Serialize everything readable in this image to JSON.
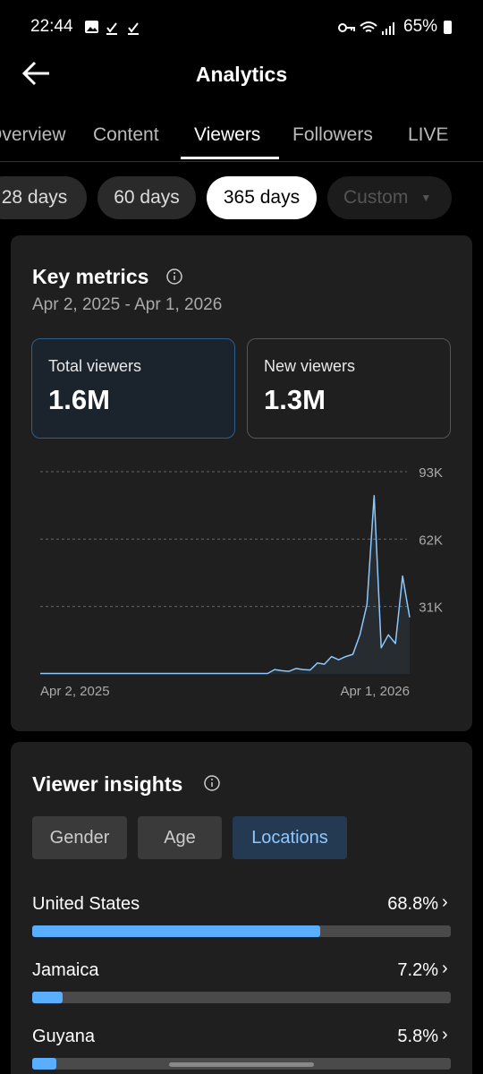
{
  "status_bar": {
    "time": "22:44",
    "battery": "65%"
  },
  "header": {
    "title": "Analytics"
  },
  "tabs": [
    "Overview",
    "Content",
    "Viewers",
    "Followers",
    "LIVE"
  ],
  "ranges": [
    "28 days",
    "60 days",
    "365 days",
    "Custom"
  ],
  "key_metrics": {
    "title": "Key metrics",
    "date_range": "Apr 2, 2025 - Apr 1, 2026",
    "cards": [
      {
        "label": "Total viewers",
        "value": "1.6M"
      },
      {
        "label": "New viewers",
        "value": "1.3M"
      }
    ]
  },
  "chart_data": {
    "type": "line",
    "categories": [
      "Apr 2, 2025",
      null,
      null,
      null,
      null,
      null,
      null,
      null,
      null,
      null,
      null,
      null,
      null,
      null,
      null,
      null,
      null,
      null,
      null,
      null,
      null,
      null,
      null,
      null,
      null,
      null,
      null,
      null,
      null,
      null,
      null,
      null,
      null,
      null,
      null,
      null,
      null,
      null,
      null,
      null,
      null,
      null,
      null,
      null,
      null,
      null,
      null,
      null,
      null,
      null,
      null,
      null,
      "Apr 1, 2026"
    ],
    "values": [
      200,
      200,
      200,
      200,
      200,
      200,
      200,
      200,
      200,
      200,
      200,
      200,
      200,
      200,
      200,
      200,
      200,
      200,
      200,
      200,
      200,
      200,
      200,
      200,
      200,
      200,
      200,
      200,
      200,
      200,
      200,
      200,
      200,
      2000,
      1500,
      1200,
      2500,
      2000,
      1800,
      5000,
      4500,
      8000,
      6500,
      8000,
      9000,
      18000,
      32000,
      82000,
      12000,
      18000,
      14000,
      45000,
      26000
    ],
    "color": "#8cc8ff",
    "ylim": [
      0,
      93000
    ],
    "yticks": [
      {
        "value": 31000,
        "label": "31K"
      },
      {
        "value": 62000,
        "label": "62K"
      },
      {
        "value": 93000,
        "label": "93K"
      }
    ],
    "grid": true
  },
  "viewer_insights": {
    "title": "Viewer insights",
    "tabs": [
      "Gender",
      "Age",
      "Locations"
    ],
    "locations": {
      "categories": [
        "United States",
        "Jamaica",
        "Guyana"
      ],
      "values": [
        68.8,
        7.2,
        5.8
      ],
      "value_labels": [
        "68.8%",
        "7.2%",
        "5.8%"
      ],
      "color": "#5aaeff"
    }
  }
}
